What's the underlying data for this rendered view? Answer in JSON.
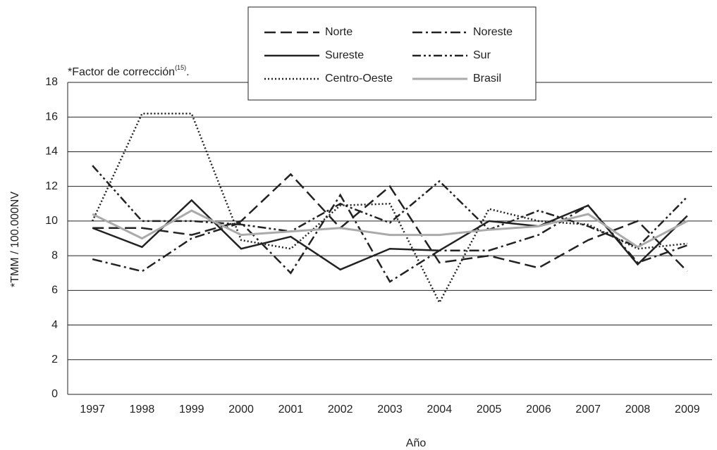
{
  "chart_data": {
    "type": "line",
    "annotation": {
      "text": "*Factor de corrección",
      "superscript": "(15)",
      "end": "."
    },
    "x_label": "Año",
    "y_label": "*TMM / 100.000NV",
    "categories": [
      "1997",
      "1998",
      "1999",
      "2000",
      "2001",
      "2002",
      "2003",
      "2004",
      "2005",
      "2006",
      "2007",
      "2008",
      "2009"
    ],
    "ylim": [
      0,
      18
    ],
    "yticks": [
      0,
      2,
      4,
      6,
      8,
      10,
      12,
      14,
      16,
      18
    ],
    "grid": true,
    "series": [
      {
        "name": "Norte",
        "color": "#222222",
        "dash": "16,7",
        "values": [
          9.6,
          9.6,
          9.2,
          10.0,
          12.7,
          9.6,
          12.0,
          7.6,
          8.0,
          7.3,
          8.9,
          10.0,
          7.1
        ]
      },
      {
        "name": "Noreste",
        "color": "#222222",
        "dash": "14,5,3,5",
        "values": [
          7.8,
          7.1,
          9.0,
          9.9,
          7.0,
          11.5,
          6.5,
          8.3,
          8.3,
          9.2,
          10.9,
          7.6,
          8.6
        ]
      },
      {
        "name": "Sureste",
        "color": "#222222",
        "dash": "none",
        "values": [
          9.6,
          8.5,
          11.2,
          8.4,
          9.1,
          7.2,
          8.4,
          8.3,
          10.0,
          9.7,
          10.9,
          7.5,
          10.3
        ]
      },
      {
        "name": "Sur",
        "color": "#222222",
        "dash": "12,4,3,4,3,4",
        "values": [
          13.2,
          10.0,
          10.0,
          9.8,
          9.4,
          11.0,
          9.9,
          12.3,
          9.5,
          10.6,
          9.7,
          8.5,
          11.4
        ]
      },
      {
        "name": "Centro-Oeste",
        "color": "#222222",
        "dash": "2,3",
        "values": [
          10.0,
          16.2,
          16.2,
          8.9,
          8.4,
          10.9,
          11.0,
          5.3,
          10.7,
          10.0,
          9.8,
          8.4,
          8.7
        ]
      },
      {
        "name": "Brasil",
        "color": "#aaaaaa",
        "dash": "none",
        "values": [
          10.4,
          9.0,
          10.6,
          9.2,
          9.4,
          9.6,
          9.2,
          9.2,
          9.5,
          9.7,
          10.4,
          8.5,
          10.0
        ]
      }
    ]
  }
}
